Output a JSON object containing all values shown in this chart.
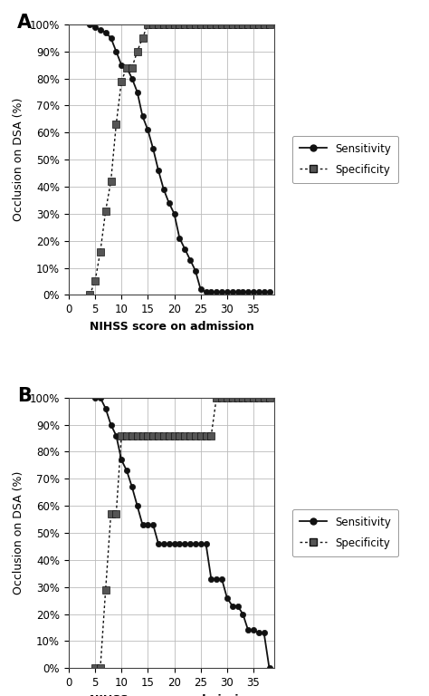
{
  "panel_A": {
    "sensitivity_x": [
      4,
      5,
      6,
      7,
      8,
      9,
      10,
      11,
      12,
      13,
      14,
      15,
      16,
      17,
      18,
      19,
      20,
      21,
      22,
      23,
      24,
      25,
      26,
      27,
      28,
      29,
      30,
      31,
      32,
      33,
      34,
      35,
      36,
      37,
      38
    ],
    "sensitivity_y": [
      100,
      99,
      98,
      97,
      95,
      90,
      85,
      84,
      80,
      75,
      66,
      61,
      54,
      46,
      39,
      34,
      30,
      21,
      17,
      13,
      9,
      2,
      1,
      1,
      1,
      1,
      1,
      1,
      1,
      1,
      1,
      1,
      1,
      1,
      1
    ],
    "specificity_x": [
      4,
      5,
      6,
      7,
      8,
      9,
      10,
      11,
      12,
      13,
      14,
      15,
      16,
      17,
      18,
      19,
      20,
      21,
      22,
      23,
      24,
      25,
      26,
      27,
      28,
      29,
      30,
      31,
      32,
      33,
      34,
      35,
      36,
      37,
      38
    ],
    "specificity_y": [
      0,
      5,
      16,
      31,
      42,
      63,
      79,
      84,
      84,
      90,
      95,
      100,
      100,
      100,
      100,
      100,
      100,
      100,
      100,
      100,
      100,
      100,
      100,
      100,
      100,
      100,
      100,
      100,
      100,
      100,
      100,
      100,
      100,
      100,
      100
    ]
  },
  "panel_B": {
    "sensitivity_x": [
      5,
      6,
      7,
      8,
      9,
      10,
      11,
      12,
      13,
      14,
      15,
      16,
      17,
      18,
      19,
      20,
      21,
      22,
      23,
      24,
      25,
      26,
      27,
      28,
      29,
      30,
      31,
      32,
      33,
      34,
      35,
      36,
      37,
      38
    ],
    "sensitivity_y": [
      100,
      100,
      96,
      90,
      86,
      77,
      73,
      67,
      60,
      53,
      53,
      53,
      46,
      46,
      46,
      46,
      46,
      46,
      46,
      46,
      46,
      46,
      33,
      33,
      33,
      26,
      23,
      23,
      20,
      14,
      14,
      13,
      13,
      0
    ],
    "specificity_x": [
      5,
      6,
      7,
      8,
      9,
      10,
      11,
      12,
      13,
      14,
      15,
      16,
      17,
      18,
      19,
      20,
      21,
      22,
      23,
      24,
      25,
      26,
      27,
      28,
      29,
      30,
      31,
      32,
      33,
      34,
      35,
      36,
      37,
      38
    ],
    "specificity_y": [
      0,
      0,
      29,
      57,
      57,
      86,
      86,
      86,
      86,
      86,
      86,
      86,
      86,
      86,
      86,
      86,
      86,
      86,
      86,
      86,
      86,
      86,
      86,
      100,
      100,
      100,
      100,
      100,
      100,
      100,
      100,
      100,
      100,
      100
    ]
  },
  "xlabel": "NIHSS score on admission",
  "ylabel": "Occlusion on DSA (%)",
  "xlim": [
    0,
    39
  ],
  "ylim": [
    0,
    100
  ],
  "yticks": [
    0,
    10,
    20,
    30,
    40,
    50,
    60,
    70,
    80,
    90,
    100
  ],
  "xticks": [
    0,
    5,
    10,
    15,
    20,
    25,
    30,
    35
  ],
  "ytick_labels": [
    "0%",
    "10%",
    "20%",
    "30%",
    "40%",
    "50%",
    "60%",
    "70%",
    "80%",
    "90%",
    "100%"
  ],
  "line_color": "#111111",
  "marker_color": "#111111",
  "spec_marker_color": "#555555",
  "legend_sensitivity": "Sensitivity",
  "legend_specificity": "Specificity",
  "label_A": "A",
  "label_B": "B",
  "background_color": "#ffffff",
  "grid_color": "#bbbbbb"
}
